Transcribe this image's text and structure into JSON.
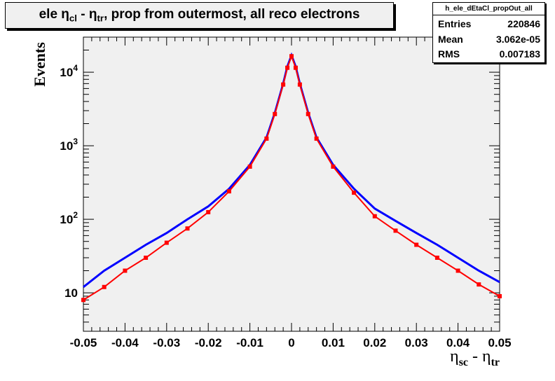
{
  "histogram_name": "h_ele_dEtaCl_propOut_all",
  "stats": [
    {
      "key": "Entries",
      "value": "220846"
    },
    {
      "key": "Mean",
      "value": "3.062e-05"
    },
    {
      "key": "RMS",
      "value": "0.007183"
    }
  ],
  "colors": {
    "frame_bg": "#f0f0f0",
    "series_blue": "#0000ff",
    "series_red": "#ff0000"
  },
  "chart_data": {
    "type": "line",
    "title": {
      "pre": "ele η",
      "sub1": "cl",
      "mid": " - η",
      "sub2": "tr",
      "post": ", prop from outermost, all reco electrons"
    },
    "xlabel": {
      "a": "η",
      "a_sub": "sc",
      "mid": " - η",
      "b_sub": "tr"
    },
    "ylabel": "Events",
    "xlim": [
      -0.05,
      0.05
    ],
    "ylim": [
      3,
      30000
    ],
    "yscale": "log",
    "grid": false,
    "x_ticks": [
      "-0.05",
      "-0.04",
      "-0.03",
      "-0.02",
      "-0.01",
      "0",
      "0.01",
      "0.02",
      "0.03",
      "0.04",
      "0.05"
    ],
    "y_ticks": [
      {
        "value": 10,
        "label": "10"
      },
      {
        "value": 100,
        "base": "10",
        "exp": "2"
      },
      {
        "value": 1000,
        "base": "10",
        "exp": "3"
      },
      {
        "value": 10000,
        "base": "10",
        "exp": "4"
      }
    ],
    "x": [
      -0.05,
      -0.045,
      -0.04,
      -0.035,
      -0.03,
      -0.025,
      -0.02,
      -0.015,
      -0.01,
      -0.006,
      -0.004,
      -0.002,
      -0.001,
      0.0,
      0.001,
      0.002,
      0.004,
      0.006,
      0.01,
      0.015,
      0.02,
      0.025,
      0.03,
      0.035,
      0.04,
      0.045,
      0.05
    ],
    "series": [
      {
        "color": "blue",
        "values": [
          12,
          20,
          30,
          45,
          65,
          100,
          150,
          260,
          550,
          1300,
          2800,
          7000,
          12000,
          17000,
          12000,
          7000,
          2800,
          1300,
          550,
          260,
          140,
          95,
          65,
          45,
          30,
          20,
          14
        ]
      },
      {
        "color": "red",
        "values": [
          8,
          12,
          20,
          30,
          48,
          75,
          125,
          240,
          520,
          1250,
          2700,
          6800,
          11500,
          16500,
          11500,
          6800,
          2700,
          1250,
          520,
          230,
          110,
          70,
          45,
          30,
          20,
          13,
          9
        ]
      }
    ]
  }
}
